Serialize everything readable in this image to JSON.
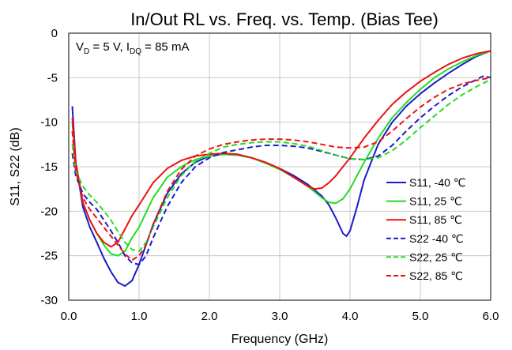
{
  "chart_data": {
    "type": "line",
    "title": "In/Out RL vs. Freq. vs. Temp. (Bias Tee)",
    "xlabel": "Frequency (GHz)",
    "ylabel": "S11, S22 (dB)",
    "xlim": [
      0,
      6
    ],
    "ylim": [
      -30,
      0
    ],
    "x_ticks": [
      "0.0",
      "1.0",
      "2.0",
      "3.0",
      "4.0",
      "5.0",
      "6.0"
    ],
    "y_ticks": [
      "0",
      "-5",
      "-10",
      "-15",
      "-20",
      "-25",
      "-30"
    ],
    "grid": true,
    "legend_position": "right",
    "annotation": {
      "v_main": "V",
      "v_sub": "D",
      "v_rest": " = 5 V, I",
      "i_sub": "DQ",
      "i_rest": " = 85 mA"
    },
    "series": [
      {
        "name": "S11, -40 ℃",
        "color": "#1a1acc",
        "dash": false,
        "points": [
          [
            0.05,
            -8.2
          ],
          [
            0.1,
            -14.5
          ],
          [
            0.2,
            -19.5
          ],
          [
            0.3,
            -21.8
          ],
          [
            0.4,
            -23.5
          ],
          [
            0.5,
            -25.3
          ],
          [
            0.6,
            -26.8
          ],
          [
            0.7,
            -28.0
          ],
          [
            0.8,
            -28.4
          ],
          [
            0.9,
            -27.8
          ],
          [
            1.0,
            -26.0
          ],
          [
            1.2,
            -21.5
          ],
          [
            1.4,
            -18.0
          ],
          [
            1.6,
            -15.8
          ],
          [
            1.8,
            -14.5
          ],
          [
            2.0,
            -13.8
          ],
          [
            2.2,
            -13.6
          ],
          [
            2.4,
            -13.7
          ],
          [
            2.6,
            -14.0
          ],
          [
            2.8,
            -14.6
          ],
          [
            3.0,
            -15.2
          ],
          [
            3.2,
            -16.0
          ],
          [
            3.4,
            -17.0
          ],
          [
            3.6,
            -18.3
          ],
          [
            3.7,
            -19.3
          ],
          [
            3.8,
            -20.8
          ],
          [
            3.9,
            -22.5
          ],
          [
            3.95,
            -22.8
          ],
          [
            4.0,
            -22.2
          ],
          [
            4.1,
            -19.5
          ],
          [
            4.2,
            -16.5
          ],
          [
            4.4,
            -12.5
          ],
          [
            4.6,
            -10.0
          ],
          [
            4.8,
            -8.2
          ],
          [
            5.0,
            -6.8
          ],
          [
            5.2,
            -5.6
          ],
          [
            5.4,
            -4.5
          ],
          [
            5.6,
            -3.5
          ],
          [
            5.8,
            -2.6
          ],
          [
            6.0,
            -2.0
          ]
        ]
      },
      {
        "name": "S11, 25 ℃",
        "color": "#22dd22",
        "dash": false,
        "points": [
          [
            0.05,
            -10.0
          ],
          [
            0.1,
            -14.5
          ],
          [
            0.2,
            -19.0
          ],
          [
            0.3,
            -21.0
          ],
          [
            0.4,
            -22.5
          ],
          [
            0.5,
            -23.8
          ],
          [
            0.6,
            -24.8
          ],
          [
            0.7,
            -25.0
          ],
          [
            0.8,
            -24.5
          ],
          [
            0.9,
            -23.0
          ],
          [
            1.0,
            -21.8
          ],
          [
            1.2,
            -18.5
          ],
          [
            1.4,
            -16.2
          ],
          [
            1.6,
            -15.0
          ],
          [
            1.8,
            -14.2
          ],
          [
            2.0,
            -13.8
          ],
          [
            2.2,
            -13.6
          ],
          [
            2.4,
            -13.7
          ],
          [
            2.6,
            -14.0
          ],
          [
            2.8,
            -14.6
          ],
          [
            3.0,
            -15.3
          ],
          [
            3.2,
            -16.2
          ],
          [
            3.4,
            -17.2
          ],
          [
            3.6,
            -18.5
          ],
          [
            3.7,
            -19.0
          ],
          [
            3.8,
            -19.1
          ],
          [
            3.9,
            -18.6
          ],
          [
            4.0,
            -17.5
          ],
          [
            4.2,
            -14.5
          ],
          [
            4.4,
            -11.8
          ],
          [
            4.6,
            -9.5
          ],
          [
            4.8,
            -7.8
          ],
          [
            5.0,
            -6.3
          ],
          [
            5.2,
            -5.0
          ],
          [
            5.4,
            -4.0
          ],
          [
            5.6,
            -3.2
          ],
          [
            5.8,
            -2.5
          ],
          [
            6.0,
            -2.0
          ]
        ]
      },
      {
        "name": "S11, 85 ℃",
        "color": "#ee1111",
        "dash": false,
        "points": [
          [
            0.05,
            -9.5
          ],
          [
            0.1,
            -14.5
          ],
          [
            0.2,
            -19.0
          ],
          [
            0.3,
            -21.0
          ],
          [
            0.4,
            -22.5
          ],
          [
            0.5,
            -23.5
          ],
          [
            0.6,
            -24.0
          ],
          [
            0.7,
            -23.5
          ],
          [
            0.8,
            -22.0
          ],
          [
            0.9,
            -20.5
          ],
          [
            1.0,
            -19.3
          ],
          [
            1.2,
            -16.8
          ],
          [
            1.4,
            -15.2
          ],
          [
            1.6,
            -14.3
          ],
          [
            1.8,
            -13.8
          ],
          [
            2.0,
            -13.6
          ],
          [
            2.2,
            -13.5
          ],
          [
            2.4,
            -13.6
          ],
          [
            2.6,
            -14.0
          ],
          [
            2.8,
            -14.5
          ],
          [
            3.0,
            -15.2
          ],
          [
            3.2,
            -16.2
          ],
          [
            3.4,
            -17.2
          ],
          [
            3.5,
            -17.5
          ],
          [
            3.6,
            -17.4
          ],
          [
            3.7,
            -16.8
          ],
          [
            3.8,
            -16.0
          ],
          [
            4.0,
            -14.0
          ],
          [
            4.2,
            -11.8
          ],
          [
            4.4,
            -9.8
          ],
          [
            4.6,
            -8.0
          ],
          [
            4.8,
            -6.6
          ],
          [
            5.0,
            -5.4
          ],
          [
            5.2,
            -4.4
          ],
          [
            5.4,
            -3.5
          ],
          [
            5.6,
            -2.8
          ],
          [
            5.8,
            -2.3
          ],
          [
            6.0,
            -2.0
          ]
        ]
      },
      {
        "name": "S22 -40 ℃",
        "color": "#1a1acc",
        "dash": true,
        "points": [
          [
            0.05,
            -13.5
          ],
          [
            0.1,
            -16.0
          ],
          [
            0.2,
            -18.0
          ],
          [
            0.3,
            -19.0
          ],
          [
            0.4,
            -19.8
          ],
          [
            0.5,
            -21.0
          ],
          [
            0.6,
            -22.2
          ],
          [
            0.7,
            -23.5
          ],
          [
            0.8,
            -25.0
          ],
          [
            0.9,
            -25.8
          ],
          [
            1.0,
            -26.0
          ],
          [
            1.1,
            -25.0
          ],
          [
            1.2,
            -23.0
          ],
          [
            1.4,
            -19.5
          ],
          [
            1.6,
            -16.8
          ],
          [
            1.8,
            -15.0
          ],
          [
            2.0,
            -14.0
          ],
          [
            2.2,
            -13.4
          ],
          [
            2.4,
            -13.1
          ],
          [
            2.6,
            -12.8
          ],
          [
            2.8,
            -12.6
          ],
          [
            3.0,
            -12.6
          ],
          [
            3.2,
            -12.7
          ],
          [
            3.4,
            -12.9
          ],
          [
            3.6,
            -13.3
          ],
          [
            3.8,
            -13.7
          ],
          [
            4.0,
            -14.1
          ],
          [
            4.2,
            -14.2
          ],
          [
            4.4,
            -13.8
          ],
          [
            4.6,
            -12.6
          ],
          [
            4.8,
            -11.0
          ],
          [
            5.0,
            -9.5
          ],
          [
            5.2,
            -8.2
          ],
          [
            5.4,
            -7.0
          ],
          [
            5.6,
            -6.0
          ],
          [
            5.8,
            -5.2
          ],
          [
            5.9,
            -4.8
          ],
          [
            6.0,
            -5.0
          ]
        ]
      },
      {
        "name": "S22, 25 ℃",
        "color": "#22dd22",
        "dash": true,
        "points": [
          [
            0.05,
            -12.5
          ],
          [
            0.1,
            -15.5
          ],
          [
            0.2,
            -17.2
          ],
          [
            0.3,
            -18.2
          ],
          [
            0.4,
            -19.0
          ],
          [
            0.5,
            -20.0
          ],
          [
            0.6,
            -21.0
          ],
          [
            0.7,
            -22.3
          ],
          [
            0.8,
            -23.5
          ],
          [
            0.9,
            -24.3
          ],
          [
            1.0,
            -24.5
          ],
          [
            1.1,
            -23.5
          ],
          [
            1.2,
            -21.8
          ],
          [
            1.4,
            -18.5
          ],
          [
            1.6,
            -16.0
          ],
          [
            1.8,
            -14.4
          ],
          [
            2.0,
            -13.5
          ],
          [
            2.2,
            -12.8
          ],
          [
            2.4,
            -12.5
          ],
          [
            2.6,
            -12.3
          ],
          [
            2.8,
            -12.2
          ],
          [
            3.0,
            -12.2
          ],
          [
            3.2,
            -12.4
          ],
          [
            3.4,
            -12.7
          ],
          [
            3.6,
            -13.2
          ],
          [
            3.8,
            -13.7
          ],
          [
            4.0,
            -14.1
          ],
          [
            4.2,
            -14.2
          ],
          [
            4.4,
            -14.0
          ],
          [
            4.6,
            -13.2
          ],
          [
            4.8,
            -12.0
          ],
          [
            5.0,
            -10.6
          ],
          [
            5.2,
            -9.3
          ],
          [
            5.4,
            -8.0
          ],
          [
            5.6,
            -6.9
          ],
          [
            5.8,
            -6.0
          ],
          [
            6.0,
            -5.2
          ]
        ]
      },
      {
        "name": "S22, 85 ℃",
        "color": "#ee1111",
        "dash": true,
        "points": [
          [
            0.05,
            -11.0
          ],
          [
            0.1,
            -15.5
          ],
          [
            0.2,
            -18.5
          ],
          [
            0.3,
            -19.8
          ],
          [
            0.4,
            -20.8
          ],
          [
            0.5,
            -21.8
          ],
          [
            0.6,
            -22.8
          ],
          [
            0.7,
            -23.8
          ],
          [
            0.8,
            -24.8
          ],
          [
            0.9,
            -25.5
          ],
          [
            1.0,
            -25.0
          ],
          [
            1.1,
            -23.8
          ],
          [
            1.2,
            -21.5
          ],
          [
            1.4,
            -17.8
          ],
          [
            1.6,
            -15.3
          ],
          [
            1.8,
            -13.8
          ],
          [
            2.0,
            -13.0
          ],
          [
            2.2,
            -12.5
          ],
          [
            2.4,
            -12.2
          ],
          [
            2.6,
            -12.0
          ],
          [
            2.8,
            -11.9
          ],
          [
            3.0,
            -11.9
          ],
          [
            3.2,
            -12.0
          ],
          [
            3.4,
            -12.2
          ],
          [
            3.6,
            -12.5
          ],
          [
            3.8,
            -12.8
          ],
          [
            4.0,
            -12.9
          ],
          [
            4.2,
            -12.8
          ],
          [
            4.4,
            -12.2
          ],
          [
            4.6,
            -11.0
          ],
          [
            4.8,
            -9.6
          ],
          [
            5.0,
            -8.3
          ],
          [
            5.2,
            -7.2
          ],
          [
            5.4,
            -6.3
          ],
          [
            5.6,
            -5.7
          ],
          [
            5.8,
            -5.3
          ],
          [
            6.0,
            -5.0
          ]
        ]
      }
    ]
  }
}
